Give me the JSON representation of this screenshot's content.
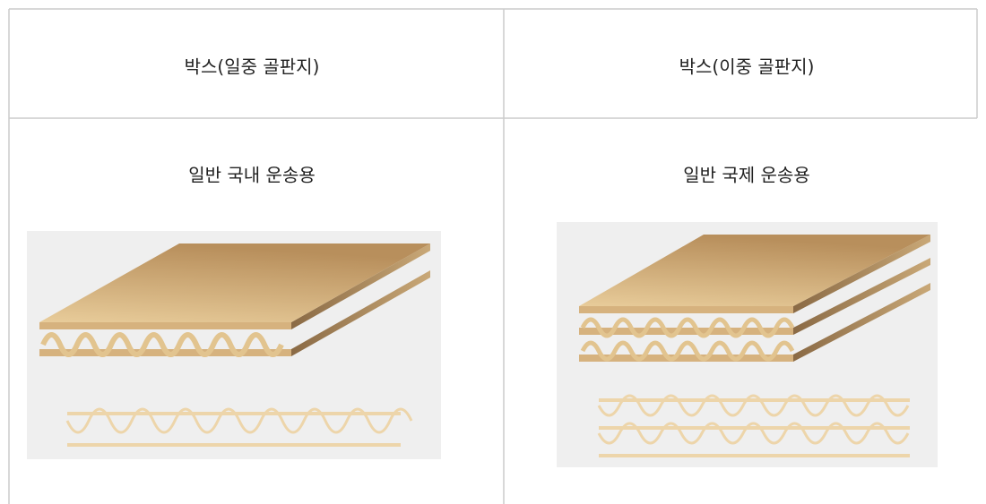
{
  "table": {
    "headers": [
      "박스(일중 골판지)",
      "박스(이중 골판지)"
    ],
    "rows": [
      [
        "일반 국내 운송용",
        "일반 국제 운송용"
      ]
    ]
  }
}
